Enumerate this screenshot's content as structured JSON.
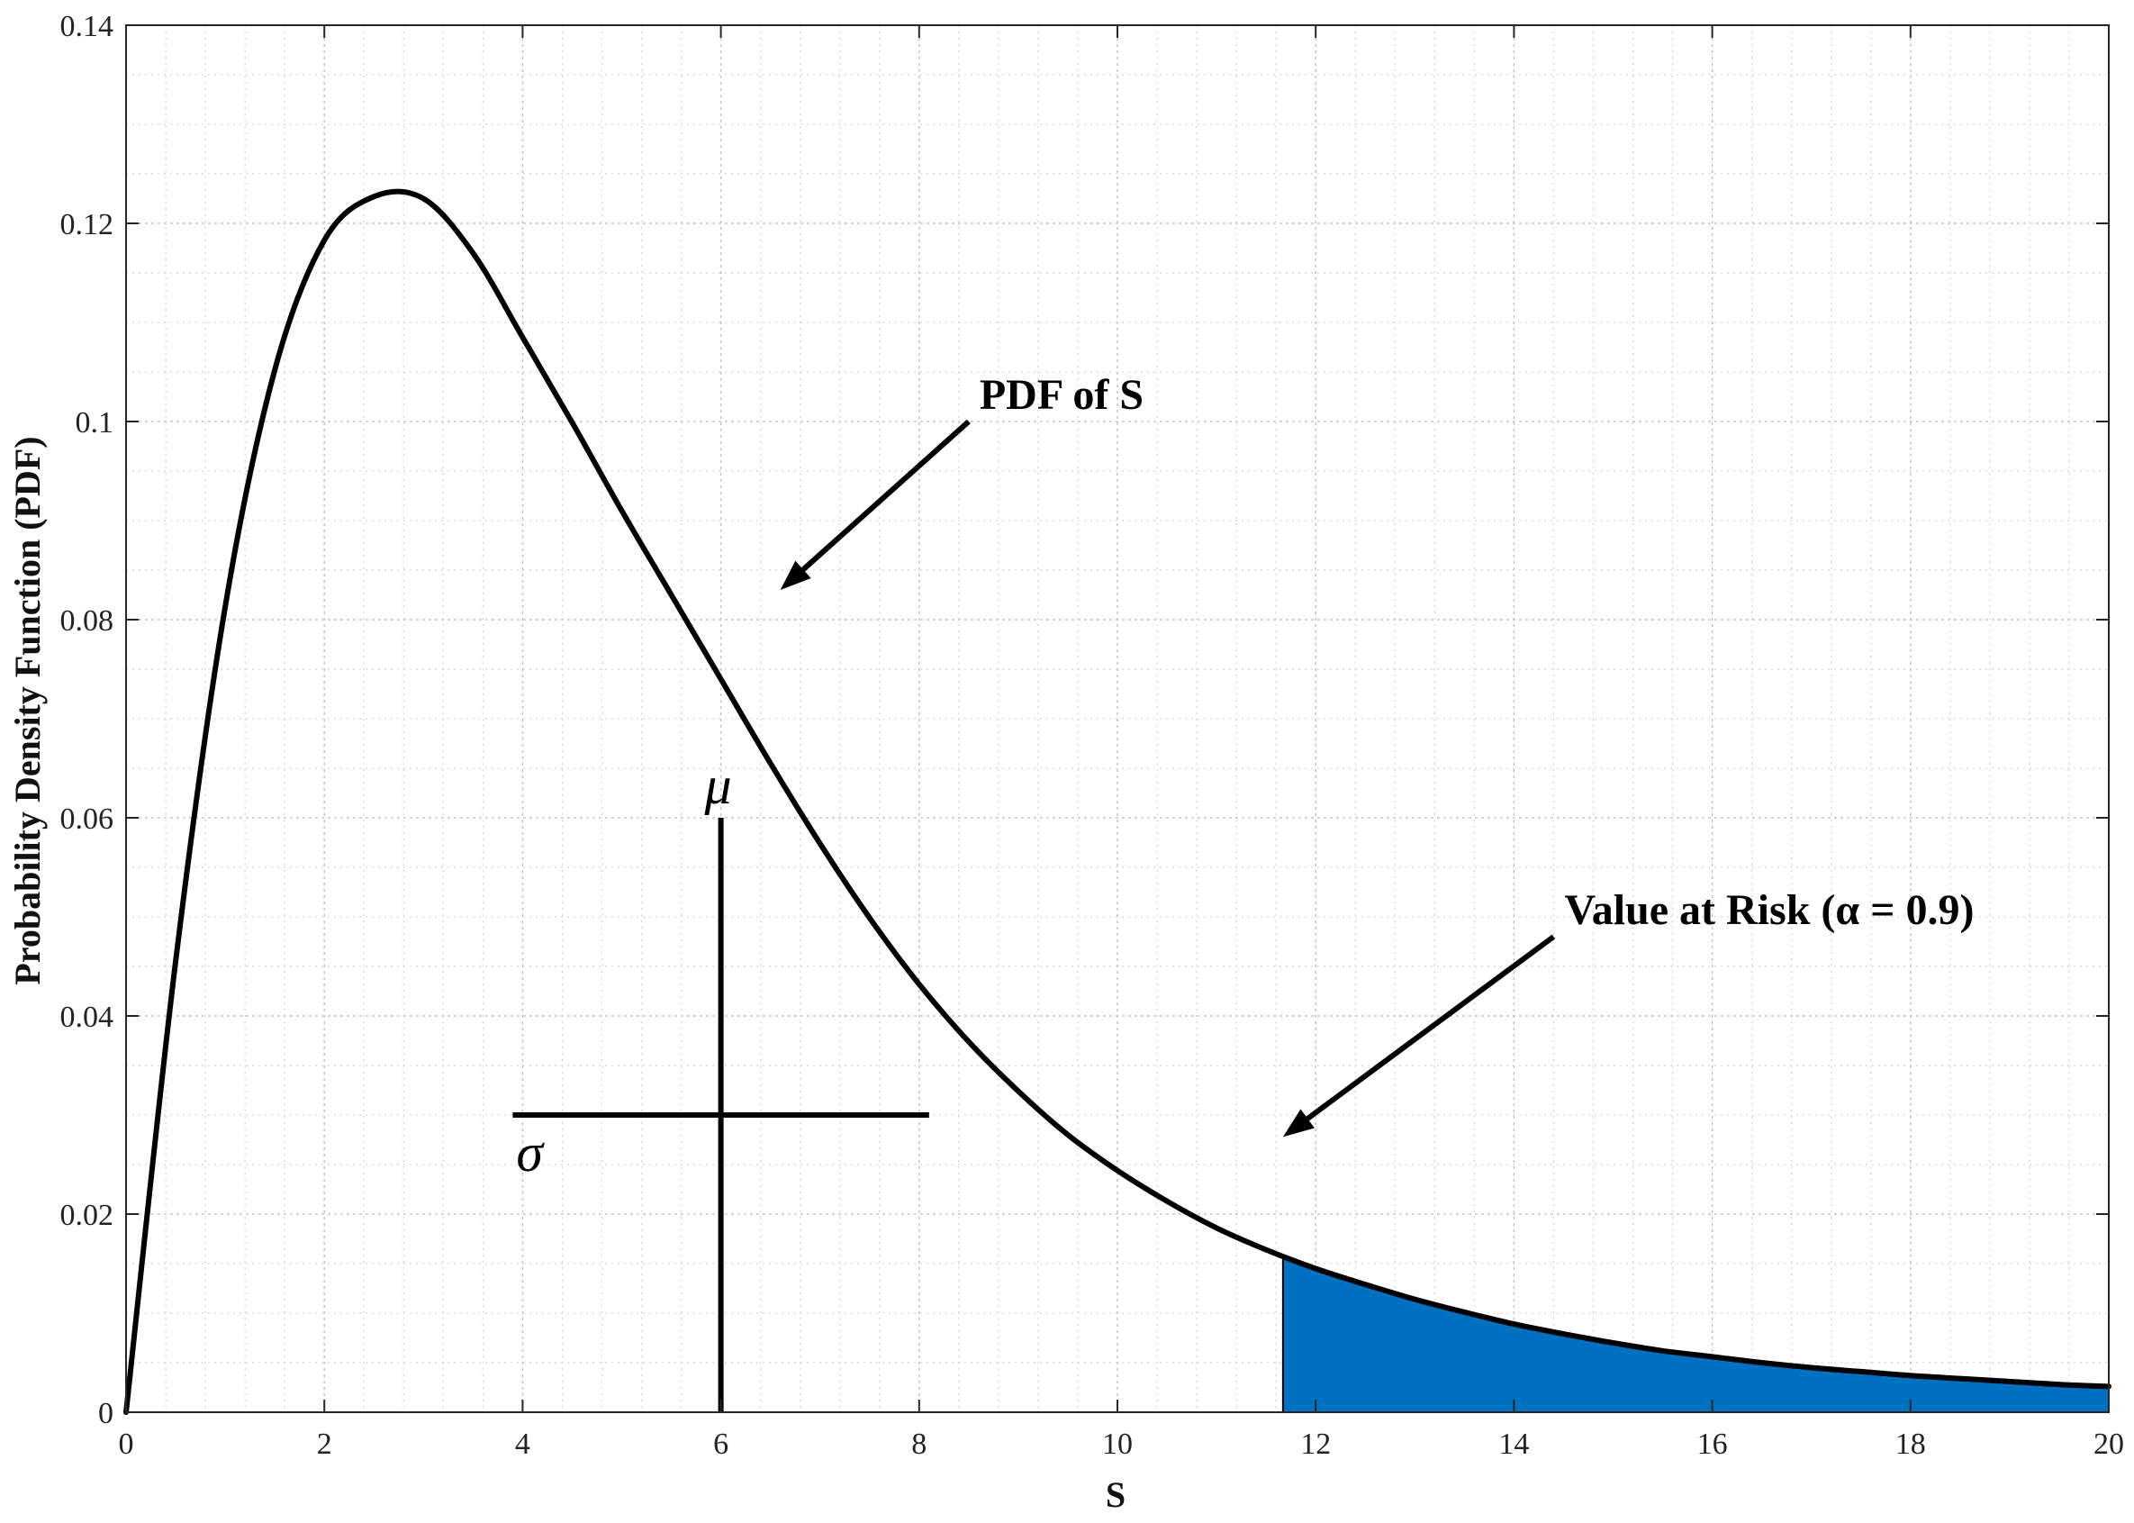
{
  "chart_data": {
    "type": "line",
    "xlabel": "S",
    "ylabel": "Probability Density Function (PDF)",
    "xlim": [
      0,
      20
    ],
    "ylim": [
      0,
      0.14
    ],
    "x_ticks": [
      0,
      2,
      4,
      6,
      8,
      10,
      12,
      14,
      16,
      18,
      20
    ],
    "x_tick_labels": [
      "0",
      "2",
      "4",
      "6",
      "8",
      "10",
      "12",
      "14",
      "16",
      "18",
      "20"
    ],
    "y_ticks": [
      0,
      0.02,
      0.04,
      0.06,
      0.08,
      0.1,
      0.12,
      0.14
    ],
    "y_tick_labels": [
      "0",
      "0.02",
      "0.04",
      "0.06",
      "0.08",
      "0.1",
      "0.12",
      "0.14"
    ],
    "grid": true,
    "minor_grid": true,
    "series": [
      {
        "color": "#000000",
        "x": [
          0,
          0.5,
          1,
          1.5,
          2,
          2.5,
          3,
          3.5,
          4,
          4.5,
          5,
          5.5,
          6,
          6.5,
          7,
          7.5,
          8,
          8.5,
          9,
          9.5,
          10,
          10.5,
          11,
          11.5,
          12,
          12.5,
          13,
          13.5,
          14,
          14.5,
          15,
          15.5,
          16,
          16.5,
          17,
          17.5,
          18,
          18.5,
          19,
          19.5,
          20
        ],
        "y": [
          0,
          0.0455,
          0.0813,
          0.1052,
          0.1183,
          0.1227,
          0.1225,
          0.117,
          0.1085,
          0.0999,
          0.091,
          0.0825,
          0.074,
          0.0655,
          0.0574,
          0.0499,
          0.0432,
          0.0374,
          0.0324,
          0.028,
          0.0244,
          0.0213,
          0.0186,
          0.0164,
          0.0145,
          0.0129,
          0.0114,
          0.0101,
          0.0089,
          0.0079,
          0.007,
          0.0062,
          0.0056,
          0.005,
          0.0045,
          0.0041,
          0.0037,
          0.0034,
          0.0031,
          0.0028,
          0.0026
        ]
      }
    ],
    "shaded_tail": {
      "x_start": 11.67,
      "color": "#0070c0"
    },
    "mean_marker": {
      "x": 6,
      "y_top": 0.06,
      "label": "μ"
    },
    "sigma_marker": {
      "y": 0.03,
      "x_start": 3.9,
      "x_end": 8.1,
      "label": "σ"
    },
    "annotations": [
      {
        "text": "PDF of S",
        "arrow_from": [
          8.5,
          0.1
        ],
        "arrow_to": [
          6.6,
          0.083
        ]
      },
      {
        "text": "Value at Risk (α = 0.9)",
        "arrow_from": [
          14.4,
          0.048
        ],
        "arrow_to": [
          11.67,
          0.0278
        ]
      }
    ]
  }
}
